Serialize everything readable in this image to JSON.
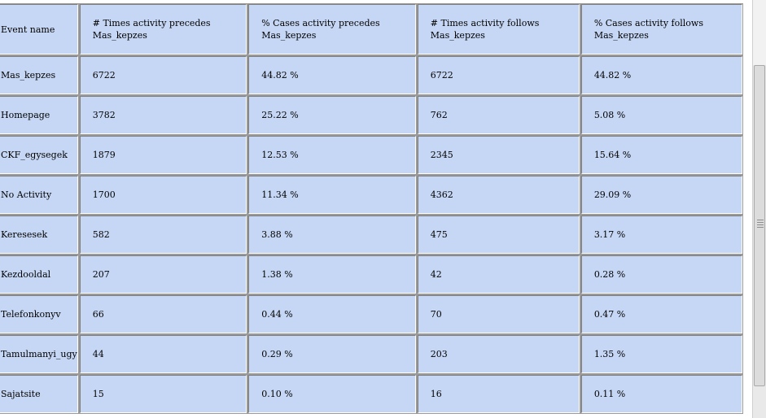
{
  "table": {
    "headers": [
      [
        "Event name",
        ""
      ],
      [
        "# Times activity precedes",
        "Mas_kepzes"
      ],
      [
        "% Cases activity precedes",
        "Mas_kepzes"
      ],
      [
        "# Times activity follows",
        "Mas_kepzes"
      ],
      [
        "% Cases activity follows",
        "Mas_kepzes"
      ]
    ],
    "rows": [
      [
        "Mas_kepzes",
        "6722",
        "44.82 %",
        "6722",
        "44.82 %"
      ],
      [
        "Homepage",
        "3782",
        "25.22 %",
        "762",
        "5.08 %"
      ],
      [
        "CKF_egysegek",
        "1879",
        "12.53 %",
        "2345",
        "15.64 %"
      ],
      [
        "No Activity",
        "1700",
        "11.34 %",
        "4362",
        "29.09 %"
      ],
      [
        "Keresesek",
        "582",
        "3.88 %",
        "475",
        "3.17 %"
      ],
      [
        "Kezdooldal",
        "207",
        "1.38 %",
        "42",
        "0.28 %"
      ],
      [
        "Telefonkonyv",
        "66",
        "0.44 %",
        "70",
        "0.47 %"
      ],
      [
        "Tamulmanyi_ugy",
        "44",
        "0.29 %",
        "203",
        "1.35 %"
      ],
      [
        "Sajatsite",
        "15",
        "0.10 %",
        "16",
        "0.11 %"
      ]
    ]
  },
  "colors": {
    "cell_bg": "#c6d7f5",
    "page_bg": "#ffffff"
  }
}
